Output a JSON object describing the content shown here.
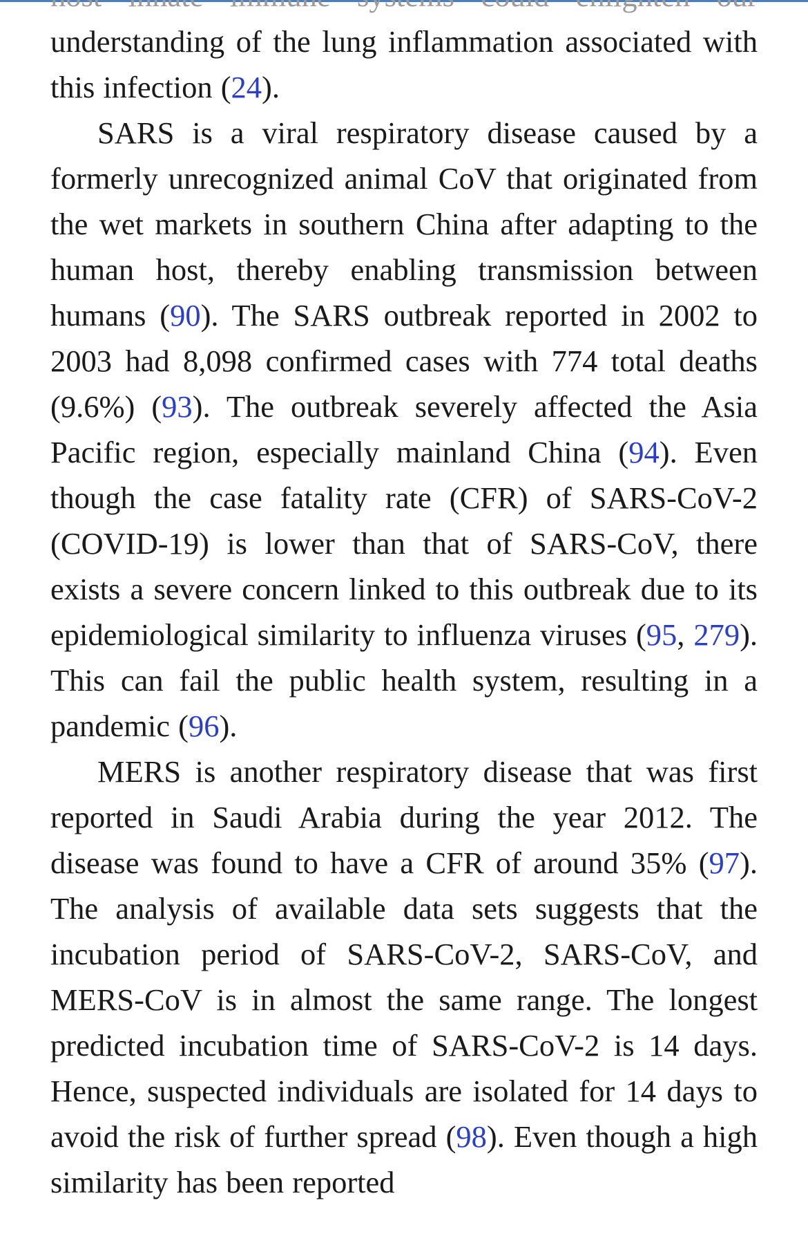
{
  "colors": {
    "text": "#1a1a1a",
    "reference_link": "#2a3fc9",
    "top_bar": "#4a7fc1"
  },
  "paragraphs": {
    "p1": {
      "faded_line": "host innate immune systems could enlighten our",
      "t1": " understanding of the lung inflammation associated with this infection (",
      "r1": "24",
      "t2": ")."
    },
    "p2": {
      "t1": "SARS is a viral respiratory disease caused by a formerly unrecognized animal CoV that originated from the wet markets in southern China after adapting to the human host, thereby enabling transmission between humans (",
      "r1": "90",
      "t2": "). The SARS outbreak reported in 2002 to 2003 had 8,098 confirmed cases with 774 total deaths (9.6%) (",
      "r2": "93",
      "t3": "). The outbreak severely affected the Asia Pacific region, especially mainland China (",
      "r3": "94",
      "t4": "). Even though the case fatality rate (CFR) of SARS-CoV-2 (COVID-19) is lower than that of SARS-CoV, there exists a severe concern linked to this outbreak due to its epidemiological similarity to influenza viruses (",
      "r4": "95",
      "t5": ", ",
      "r5": "279",
      "t6": "). This can fail the public health system, resulting in a pandemic (",
      "r6": "96",
      "t7": ")."
    },
    "p3": {
      "t1": "MERS is another respiratory disease that was first reported in Saudi Arabia during the year 2012. The disease was found to have a CFR of around 35% (",
      "r1": "97",
      "t2": "). The analysis of available data sets suggests that the incubation period of SARS-CoV-2, SARS-CoV, and MERS-CoV is in almost the same range. The longest predicted incubation time of SARS-CoV-2 is 14 days. Hence, suspected individuals are isolated for 14 days to avoid the risk of further spread (",
      "r2": "98",
      "t3": "). Even though a high similarity has been reported"
    }
  }
}
